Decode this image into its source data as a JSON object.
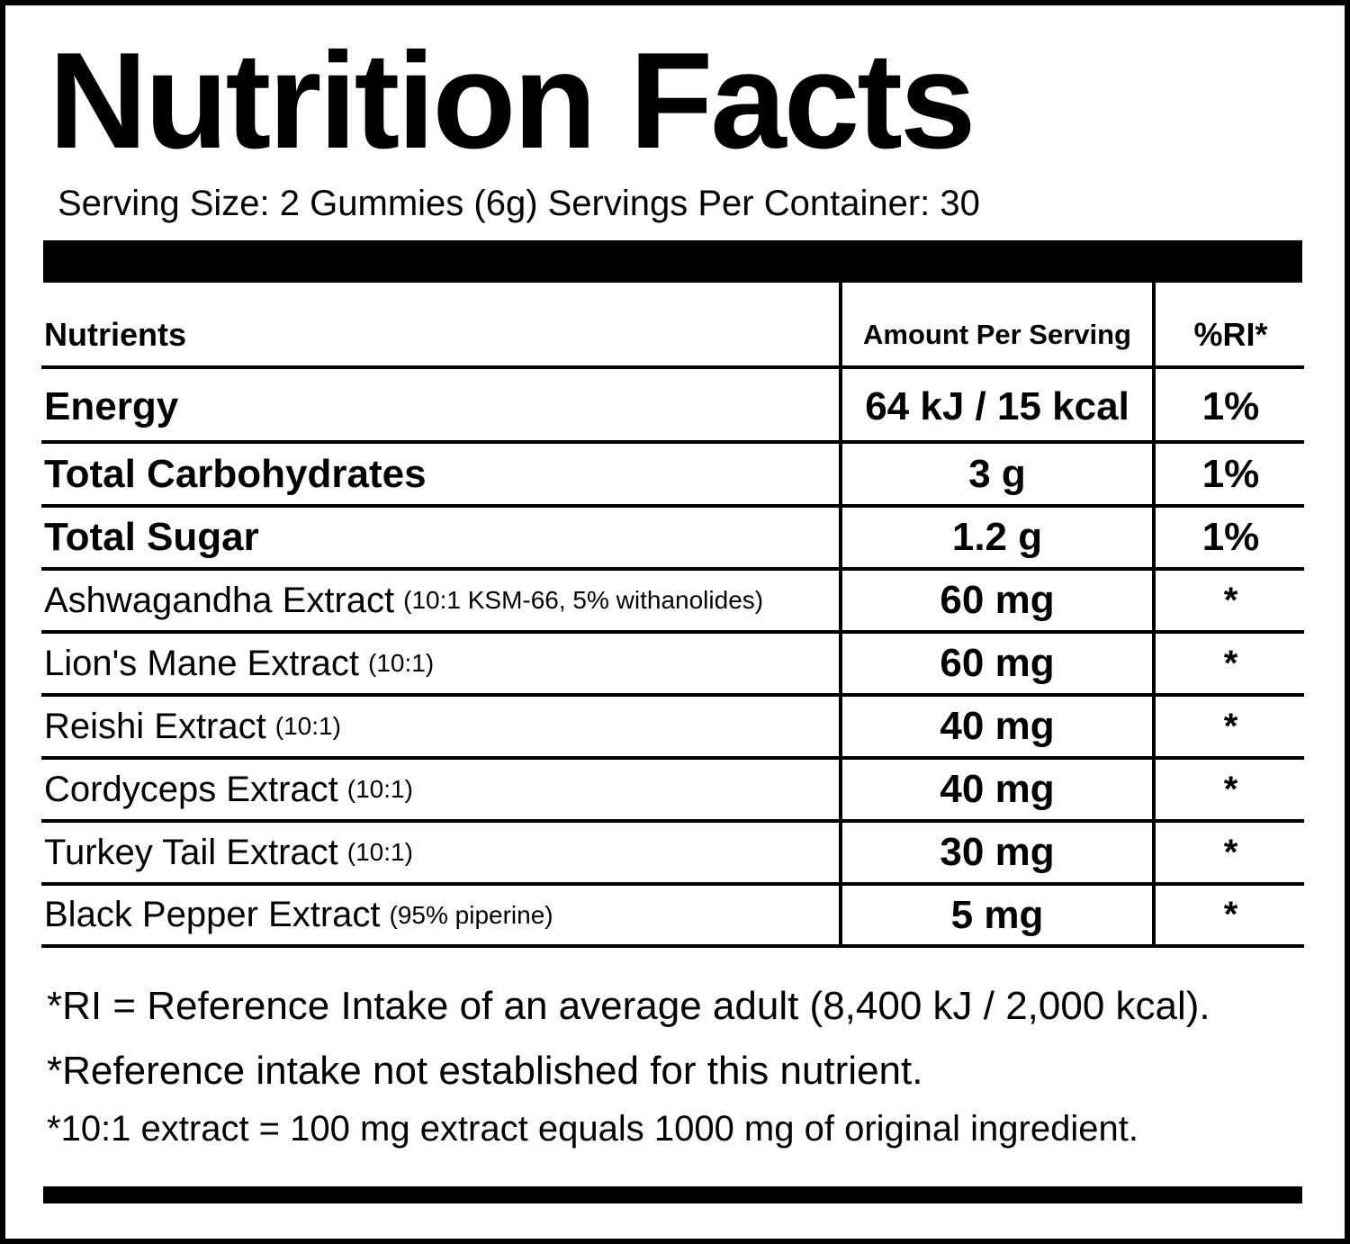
{
  "label": {
    "title": "Nutrition Facts",
    "serving_line": "Serving Size: 2 Gummies (6g) Servings Per Container: 30"
  },
  "table": {
    "headers": {
      "nutrients": "Nutrients",
      "amount": "Amount Per Serving",
      "ri": "%RI*"
    },
    "rows": [
      {
        "name": "Energy",
        "note": "",
        "amount": "64 kJ / 15 kcal",
        "ri": "1%"
      },
      {
        "name": "Total Carbohydrates",
        "note": "",
        "amount": "3 g",
        "ri": "1%"
      },
      {
        "name": "Total Sugar",
        "note": "",
        "amount": "1.2 g",
        "ri": "1%"
      },
      {
        "name": "Ashwagandha Extract",
        "note": "(10:1 KSM-66, 5% withanolides)",
        "amount": "60 mg",
        "ri": "*"
      },
      {
        "name": "Lion's Mane Extract",
        "note": "(10:1)",
        "amount": "60 mg",
        "ri": "*"
      },
      {
        "name": "Reishi Extract",
        "note": "(10:1)",
        "amount": "40 mg",
        "ri": "*"
      },
      {
        "name": "Cordyceps Extract",
        "note": "(10:1)",
        "amount": "40 mg",
        "ri": "*"
      },
      {
        "name": "Turkey Tail Extract",
        "note": "(10:1)",
        "amount": "30 mg",
        "ri": "*"
      },
      {
        "name": "Black Pepper Extract",
        "note": "(95% piperine)",
        "amount": "5 mg",
        "ri": "*"
      }
    ]
  },
  "footnotes": {
    "line1": "*RI = Reference Intake of an average adult (8,400 kJ / 2,000 kcal).",
    "line2": "*Reference intake not established for this nutrient.",
    "line3": "*10:1 extract = 100 mg extract equals 1000 mg of original ingredient."
  }
}
